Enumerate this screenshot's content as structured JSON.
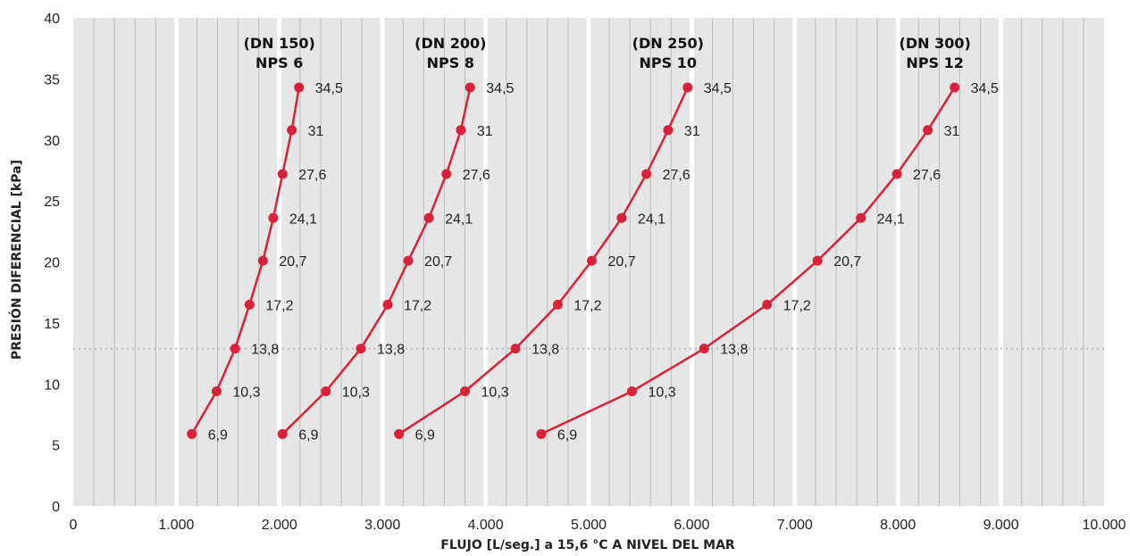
{
  "chart_data": {
    "type": "line",
    "xlabel": "FLUJO [L/seg.] a 15,6 °C A NIVEL DEL MAR",
    "ylabel": "PRESIÓN DIFERENCIAL [kPa]",
    "xlim": [
      0,
      10000
    ],
    "ylim": [
      0,
      40
    ],
    "xticks": [
      0,
      1000,
      2000,
      3000,
      4000,
      5000,
      6000,
      7000,
      8000,
      9000,
      10000
    ],
    "xtick_labels": [
      "0",
      "1.000",
      "2.000",
      "3.000",
      "4.000",
      "5.000",
      "6.000",
      "7.000",
      "8.000",
      "9.000",
      "10.000"
    ],
    "yticks": [
      0,
      5,
      10,
      15,
      20,
      25,
      30,
      35,
      40
    ],
    "ytick_labels": [
      "0",
      "5",
      "10",
      "15",
      "20",
      "25",
      "30",
      "35",
      "40"
    ],
    "reference_line_y": 12.9,
    "grid": true,
    "colors": {
      "series": "#d9213a",
      "plot_bg": "#e6e6e6",
      "minor_grid": "#bdbdbd",
      "major_grid": "#ffffff",
      "ref_line": "#b8b8b8"
    },
    "point_labels": [
      "6,9",
      "10,3",
      "13,8",
      "17,2",
      "20,7",
      "24,1",
      "27,6",
      "31",
      "34,5"
    ],
    "series": [
      {
        "name_line1": "(DN 150)",
        "name_line2": "NPS 6",
        "x": [
          1150,
          1390,
          1570,
          1710,
          1840,
          1940,
          2030,
          2120,
          2190
        ],
        "y": [
          5.9,
          9.4,
          12.9,
          16.5,
          20.1,
          23.6,
          27.2,
          30.8,
          34.3
        ]
      },
      {
        "name_line1": "(DN 200)",
        "name_line2": "NPS 8",
        "x": [
          2030,
          2450,
          2790,
          3050,
          3250,
          3450,
          3620,
          3760,
          3850
        ],
        "y": [
          5.9,
          9.4,
          12.9,
          16.5,
          20.1,
          23.6,
          27.2,
          30.8,
          34.3
        ]
      },
      {
        "name_line1": "(DN 250)",
        "name_line2": "NPS 10",
        "x": [
          3160,
          3800,
          4290,
          4700,
          5030,
          5320,
          5560,
          5770,
          5960
        ],
        "y": [
          5.9,
          9.4,
          12.9,
          16.5,
          20.1,
          23.6,
          27.2,
          30.8,
          34.3
        ]
      },
      {
        "name_line1": "(DN 300)",
        "name_line2": "NPS 12",
        "x": [
          4540,
          5420,
          6120,
          6730,
          7220,
          7640,
          7990,
          8290,
          8550
        ],
        "y": [
          5.9,
          9.4,
          12.9,
          16.5,
          20.1,
          23.6,
          27.2,
          30.8,
          34.3
        ]
      }
    ]
  }
}
